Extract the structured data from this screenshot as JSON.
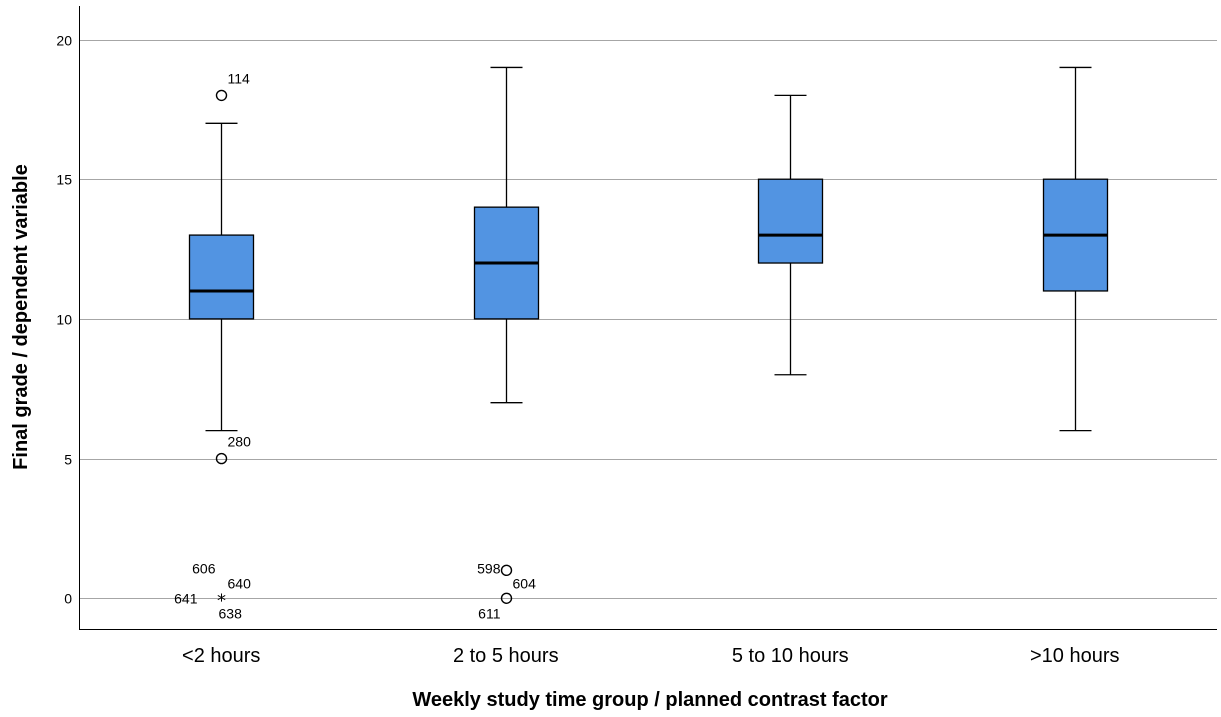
{
  "chart_data": {
    "type": "boxplot",
    "xlabel": "Weekly study time group / planned contrast factor",
    "ylabel": "Final grade / dependent variable",
    "ylim": [
      -1.1,
      21.2
    ],
    "yticks": [
      0,
      5,
      10,
      15,
      20
    ],
    "grid": "horizontal",
    "colors": {
      "box_fill": "#5294e2",
      "stroke": "#000000",
      "grid": "#a6a6a6"
    },
    "categories": [
      "<2 hours",
      "2 to 5 hours",
      "5 to 10 hours",
      ">10 hours"
    ],
    "boxes": [
      {
        "category": "<2 hours",
        "whisker_low": 6,
        "q1": 10,
        "median": 11,
        "q3": 13,
        "whisker_high": 17,
        "outliers": [
          {
            "value": 18,
            "marker": "circle",
            "labels": [
              {
                "text": "114",
                "pos": "above-right"
              }
            ]
          },
          {
            "value": 5,
            "marker": "circle",
            "labels": [
              {
                "text": "280",
                "pos": "above-right"
              }
            ]
          },
          {
            "value": 0,
            "marker": "star",
            "labels": [
              {
                "text": "606",
                "pos": "upper-left"
              },
              {
                "text": "640",
                "pos": "upper-right"
              },
              {
                "text": "641",
                "pos": "left"
              },
              {
                "text": "638",
                "pos": "below-right"
              }
            ]
          }
        ]
      },
      {
        "category": "2 to 5 hours",
        "whisker_low": 7,
        "q1": 10,
        "median": 12,
        "q3": 14,
        "whisker_high": 19,
        "outliers": [
          {
            "value": 1,
            "marker": "circle",
            "labels": []
          },
          {
            "value": 0,
            "marker": "circle",
            "labels": [
              {
                "text": "598",
                "pos": "upper-left"
              },
              {
                "text": "604",
                "pos": "upper-right"
              },
              {
                "text": "611",
                "pos": "below-left"
              }
            ]
          }
        ]
      },
      {
        "category": "5 to 10 hours",
        "whisker_low": 8,
        "q1": 12,
        "median": 13,
        "q3": 15,
        "whisker_high": 18,
        "outliers": []
      },
      {
        "category": ">10 hours",
        "whisker_low": 6,
        "q1": 11,
        "median": 13,
        "q3": 15,
        "whisker_high": 19,
        "outliers": []
      }
    ]
  }
}
